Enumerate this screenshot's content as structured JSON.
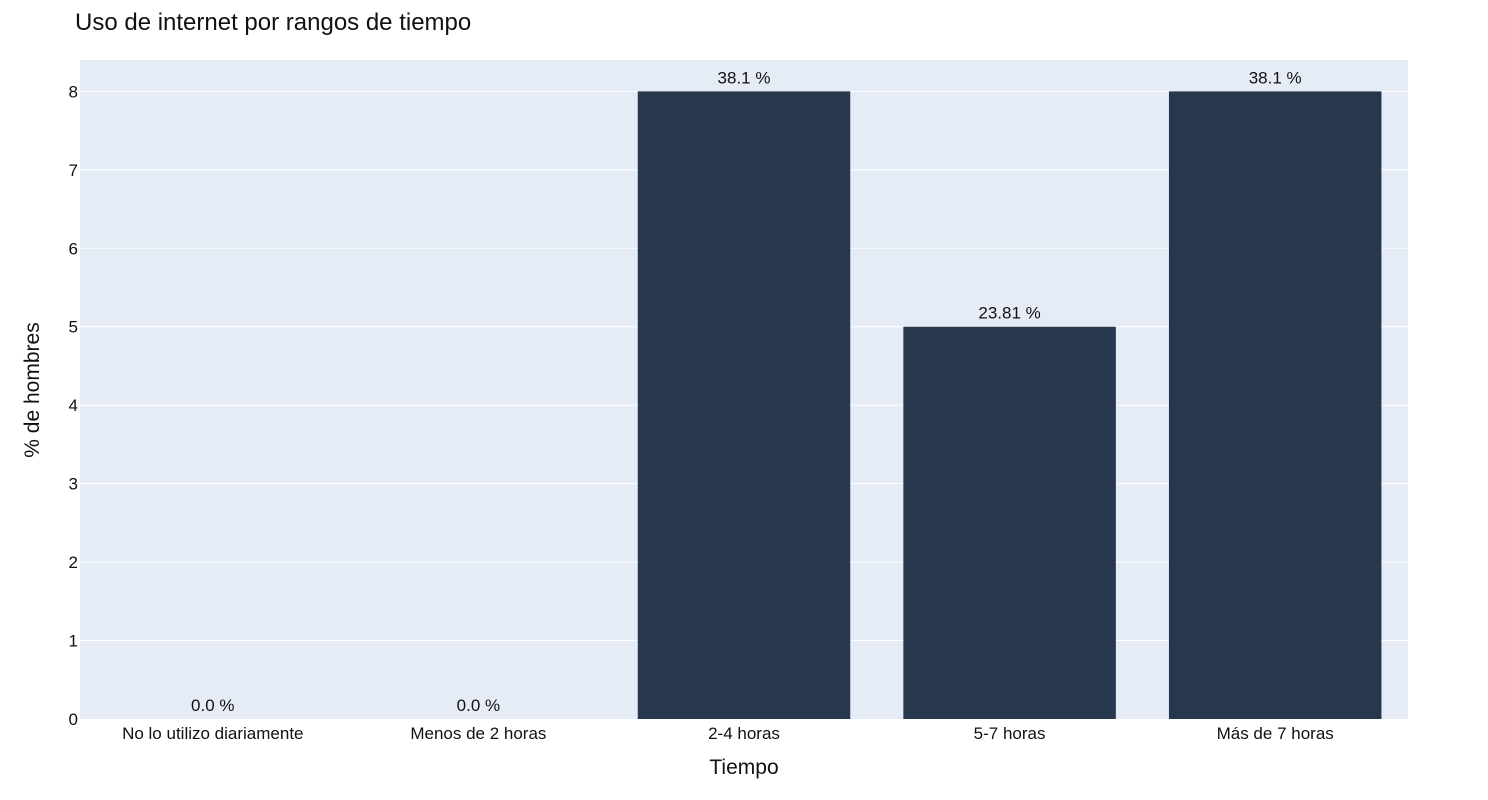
{
  "chart_data": {
    "type": "bar",
    "title": "Uso de internet por rangos de tiempo",
    "xlabel": "Tiempo",
    "ylabel": "% de hombres",
    "categories": [
      "No lo utilizo diariamente",
      "Menos de 2 horas",
      "2-4 horas",
      "5-7 horas",
      "Más de 7 horas"
    ],
    "values": [
      0,
      0,
      8,
      5,
      8
    ],
    "bar_labels": [
      "0.0 %",
      "0.0 %",
      "38.1 %",
      "23.81 %",
      "38.1 %"
    ],
    "ylim": [
      0,
      8.4
    ],
    "yticks": [
      0,
      1,
      2,
      3,
      4,
      5,
      6,
      7,
      8
    ],
    "grid": true,
    "colors": {
      "bar": "#27374d",
      "plot_bg": "#e5ecf6",
      "grid": "#ffffff"
    }
  }
}
